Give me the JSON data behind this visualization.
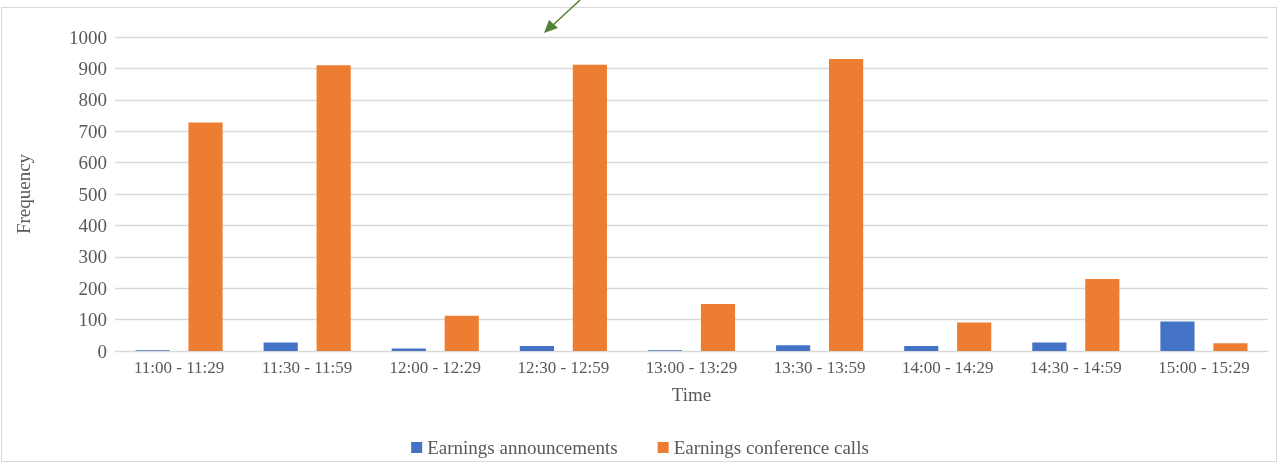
{
  "chart_data": {
    "type": "bar",
    "xlabel": "Time",
    "ylabel": "Frequency",
    "categories": [
      "11:00 - 11:29",
      "11:30 - 11:59",
      "12:00 - 12:29",
      "12:30 - 12:59",
      "13:00 - 13:29",
      "13:30 - 13:59",
      "14:00 - 14:29",
      "14:30 - 14:59",
      "15:00 - 15:29"
    ],
    "series": [
      {
        "name": "Earnings announcements",
        "color": "#4472c4",
        "values": [
          2,
          27,
          8,
          16,
          2,
          18,
          16,
          27,
          94
        ]
      },
      {
        "name": "Earnings conference calls",
        "color": "#ed7d31",
        "values": [
          728,
          910,
          112,
          912,
          150,
          930,
          91,
          229,
          25
        ]
      }
    ],
    "ylim": [
      0,
      1000
    ],
    "yticks": [
      0,
      100,
      200,
      300,
      400,
      500,
      600,
      700,
      800,
      900,
      1000
    ],
    "grid": "y",
    "legend": "bottom"
  }
}
